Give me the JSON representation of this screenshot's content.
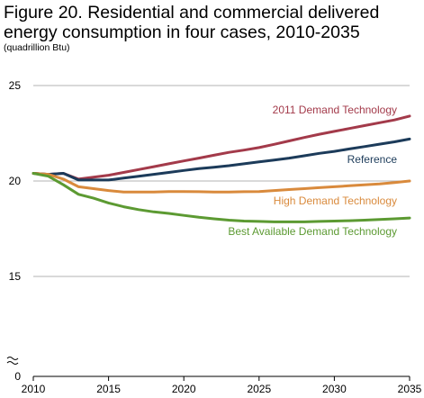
{
  "chart_data": {
    "type": "line",
    "title": "Figure 20. Residential and commercial delivered energy consumption in four cases, 2010-2035",
    "units": "(quadrillion Btu)",
    "xlabel": "",
    "ylabel": "",
    "xlim": [
      2010,
      2035
    ],
    "ylim": [
      0,
      25
    ],
    "y_axis_break": true,
    "xticks": [
      2010,
      2015,
      2020,
      2025,
      2030,
      2035
    ],
    "yticks": [
      0,
      15,
      20,
      25
    ],
    "grid": "horizontal",
    "legend": "direct labels at line ends",
    "x": [
      2010,
      2011,
      2012,
      2013,
      2014,
      2015,
      2016,
      2017,
      2018,
      2019,
      2020,
      2021,
      2022,
      2023,
      2024,
      2025,
      2026,
      2027,
      2028,
      2029,
      2030,
      2031,
      2032,
      2033,
      2034,
      2035
    ],
    "series": [
      {
        "name": "2011 Demand Technology",
        "color": "#a33a4a",
        "values": [
          20.4,
          20.35,
          20.4,
          20.1,
          20.2,
          20.3,
          20.45,
          20.6,
          20.75,
          20.9,
          21.05,
          21.2,
          21.35,
          21.5,
          21.62,
          21.75,
          21.92,
          22.1,
          22.28,
          22.45,
          22.6,
          22.75,
          22.9,
          23.05,
          23.2,
          23.4
        ]
      },
      {
        "name": "Reference",
        "color": "#1c3b5a",
        "values": [
          20.4,
          20.35,
          20.4,
          20.05,
          20.05,
          20.05,
          20.15,
          20.25,
          20.35,
          20.45,
          20.55,
          20.65,
          20.72,
          20.8,
          20.9,
          21.0,
          21.1,
          21.2,
          21.32,
          21.45,
          21.55,
          21.68,
          21.8,
          21.93,
          22.05,
          22.2
        ]
      },
      {
        "name": "High Demand Technology",
        "color": "#d98a3c",
        "values": [
          20.4,
          20.35,
          20.1,
          19.7,
          19.6,
          19.5,
          19.42,
          19.42,
          19.42,
          19.45,
          19.45,
          19.44,
          19.42,
          19.42,
          19.44,
          19.45,
          19.5,
          19.55,
          19.6,
          19.65,
          19.7,
          19.75,
          19.8,
          19.85,
          19.92,
          20.0
        ]
      },
      {
        "name": "Best Available Demand Technology",
        "color": "#5c9a32",
        "values": [
          20.4,
          20.25,
          19.8,
          19.3,
          19.1,
          18.85,
          18.65,
          18.5,
          18.38,
          18.3,
          18.2,
          18.1,
          18.02,
          17.95,
          17.9,
          17.88,
          17.86,
          17.86,
          17.86,
          17.88,
          17.9,
          17.92,
          17.95,
          17.98,
          18.02,
          18.06
        ]
      }
    ]
  }
}
